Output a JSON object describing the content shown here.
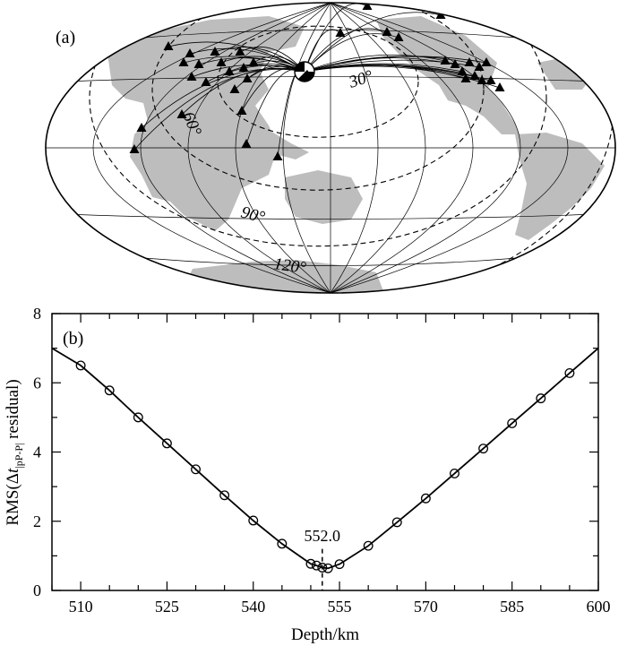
{
  "panel_a": {
    "label": "(a)",
    "contour_labels": [
      "30°",
      "60°",
      "90°",
      "120°"
    ]
  },
  "panel_b": {
    "label": "(b)",
    "annotation": "552.0",
    "ylabel": {
      "prefix": "RMS(Δ",
      "italic": "t",
      "subscript": "|pP-P|",
      "suffix": " residual)"
    },
    "xlabel": "Depth/km"
  },
  "colors": {
    "land": "#bdbdbd",
    "ink": "#000000"
  },
  "chart_data": [
    {
      "type": "map",
      "title": "",
      "projection": "hammer-aitoff",
      "event_symbol": "beachball",
      "station_symbol": "triangle",
      "distance_contours": [
        "30°",
        "60°",
        "90°",
        "120°"
      ]
    },
    {
      "type": "line",
      "title": "",
      "xlabel": "Depth/km",
      "ylabel": "RMS(Δt|pP-P| residual)",
      "xlim": [
        505,
        600
      ],
      "ylim": [
        0,
        8
      ],
      "xticks": [
        510,
        525,
        540,
        555,
        570,
        585,
        600
      ],
      "yticks": [
        0,
        2,
        4,
        6,
        8
      ],
      "grid": false,
      "best_depth": 552.0,
      "series": [
        {
          "x": [
            505,
            510,
            515,
            520,
            525,
            530,
            535,
            540,
            545,
            550,
            551,
            552,
            553,
            555,
            560,
            565,
            570,
            575,
            580,
            585,
            590,
            595,
            600
          ],
          "y": [
            7.0,
            6.5,
            5.78,
            5.0,
            4.25,
            3.5,
            2.75,
            2.02,
            1.35,
            0.77,
            0.72,
            0.66,
            0.64,
            0.76,
            1.29,
            1.97,
            2.66,
            3.38,
            4.1,
            4.83,
            5.55,
            6.28,
            7.0
          ],
          "markers": [
            false,
            true,
            true,
            true,
            true,
            true,
            true,
            true,
            true,
            true,
            true,
            true,
            true,
            true,
            true,
            true,
            true,
            true,
            true,
            true,
            true,
            true,
            false
          ]
        }
      ]
    }
  ]
}
